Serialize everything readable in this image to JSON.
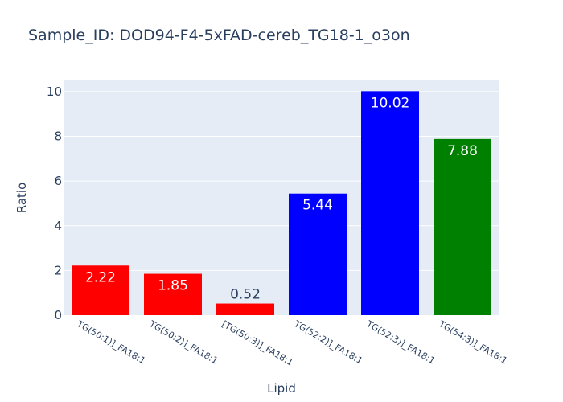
{
  "chart_data": {
    "type": "bar",
    "title": "Sample_ID: DOD94-F4-5xFAD-cereb_TG18-1_o3on",
    "xlabel": "Lipid",
    "ylabel": "Ratio",
    "categories": [
      "TG(50:1)]_FA18:1",
      "TG(50:2)]_FA18:1",
      "[TG(50:3)]_FA18:1",
      "TG(52:2)]_FA18:1",
      "TG(52:3)]_FA18:1",
      "TG(54:3)]_FA18:1"
    ],
    "values": [
      2.22,
      1.85,
      0.52,
      5.44,
      10.02,
      7.88
    ],
    "data_labels": [
      "2.22",
      "1.85",
      "0.52",
      "5.44",
      "10.02",
      "7.88"
    ],
    "bar_colors": [
      "#ff0000",
      "#ff0000",
      "#ff0000",
      "#0000ff",
      "#0000ff",
      "#008000"
    ],
    "ylim": [
      0,
      10.5
    ],
    "yticks": [
      0,
      2,
      4,
      6,
      8,
      10
    ],
    "ytick_labels": [
      "0",
      "2",
      "4",
      "6",
      "8",
      "10"
    ],
    "grid": true,
    "legend": "none",
    "plot_background": "#e5ecf6",
    "text_color": "#2a3f5f"
  }
}
